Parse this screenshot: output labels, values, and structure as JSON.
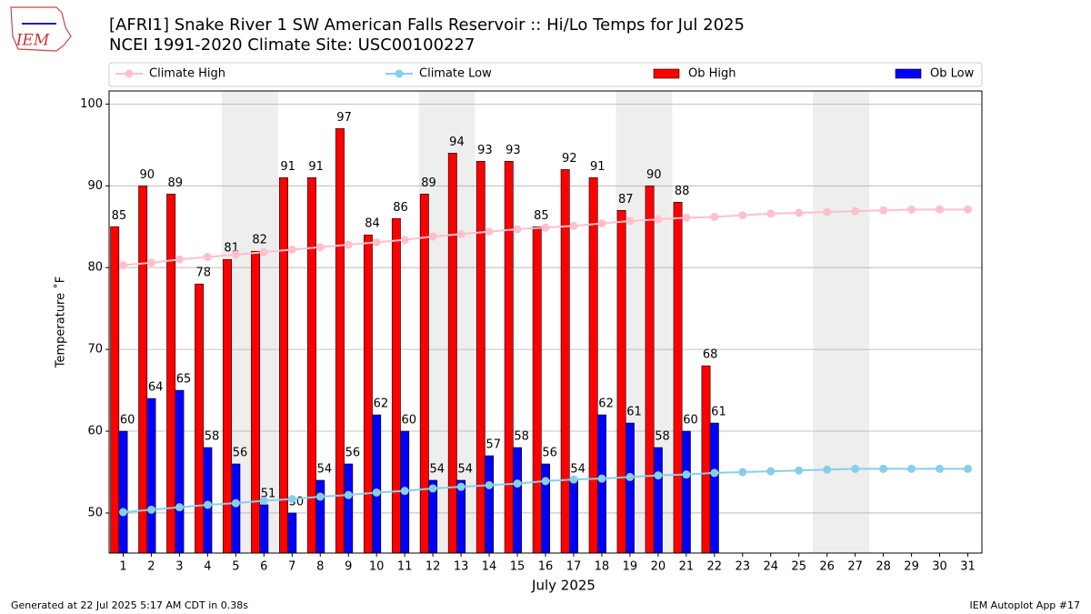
{
  "chart_data": {
    "type": "bar",
    "logo": "IEM",
    "title": "[AFRI1] Snake River 1 SW American Falls Reservoir :: Hi/Lo Temps for Jul 2025",
    "subtitle": "NCEI 1991-2020 Climate Site: USC00100227",
    "xlabel": "July 2025",
    "ylabel": "Temperature ˚F",
    "footer_left": "Generated at 22 Jul 2025 5:17 AM CDT in 0.38s",
    "footer_right": "IEM Autoplot App #17",
    "x": [
      1,
      2,
      3,
      4,
      5,
      6,
      7,
      8,
      9,
      10,
      11,
      12,
      13,
      14,
      15,
      16,
      17,
      18,
      19,
      20,
      21,
      22,
      23,
      24,
      25,
      26,
      27,
      28,
      29,
      30,
      31
    ],
    "xlim": [
      0.5,
      31.5
    ],
    "xticks": [
      1,
      2,
      3,
      4,
      5,
      6,
      7,
      8,
      9,
      10,
      11,
      12,
      13,
      14,
      15,
      16,
      17,
      18,
      19,
      20,
      21,
      22,
      23,
      24,
      25,
      26,
      27,
      28,
      29,
      30,
      31
    ],
    "ylim": [
      45.1,
      101.6
    ],
    "yticks": [
      50,
      60,
      70,
      80,
      90,
      100
    ],
    "grid": true,
    "shaded_ranges": [
      [
        4.5,
        6.5
      ],
      [
        11.5,
        13.5
      ],
      [
        18.5,
        20.5
      ],
      [
        25.5,
        27.5
      ]
    ],
    "shade_color": "#eeeeee",
    "legend": "top",
    "series": [
      {
        "name": "Climate High",
        "kind": "line",
        "color": "#ffc0cb",
        "values": [
          80.3,
          80.6,
          81.0,
          81.3,
          81.6,
          81.9,
          82.2,
          82.5,
          82.8,
          83.1,
          83.4,
          83.8,
          84.1,
          84.4,
          84.7,
          84.9,
          85.1,
          85.4,
          85.7,
          85.9,
          86.1,
          86.2,
          86.4,
          86.6,
          86.7,
          86.8,
          86.9,
          87.0,
          87.1,
          87.1,
          87.1
        ]
      },
      {
        "name": "Climate Low",
        "kind": "line",
        "color": "#87ceeb",
        "values": [
          50.1,
          50.4,
          50.7,
          51.0,
          51.2,
          51.5,
          51.7,
          52.0,
          52.2,
          52.5,
          52.7,
          53.0,
          53.2,
          53.4,
          53.6,
          53.9,
          54.1,
          54.2,
          54.4,
          54.6,
          54.7,
          54.9,
          55.0,
          55.1,
          55.2,
          55.3,
          55.4,
          55.4,
          55.4,
          55.4,
          55.4
        ]
      },
      {
        "name": "Ob High",
        "kind": "bar",
        "color": "#ff0000",
        "values": [
          85,
          90,
          89,
          78,
          81,
          82,
          91,
          91,
          97,
          84,
          86,
          89,
          94,
          93,
          93,
          85,
          92,
          91,
          87,
          90,
          88,
          68,
          null,
          null,
          null,
          null,
          null,
          null,
          null,
          null,
          null
        ]
      },
      {
        "name": "Ob Low",
        "kind": "bar",
        "color": "#0000ff",
        "values": [
          60,
          64,
          65,
          58,
          56,
          51,
          50,
          54,
          56,
          62,
          60,
          54,
          54,
          57,
          58,
          56,
          54,
          62,
          61,
          58,
          60,
          61,
          null,
          null,
          null,
          null,
          null,
          null,
          null,
          null,
          null
        ]
      }
    ]
  }
}
